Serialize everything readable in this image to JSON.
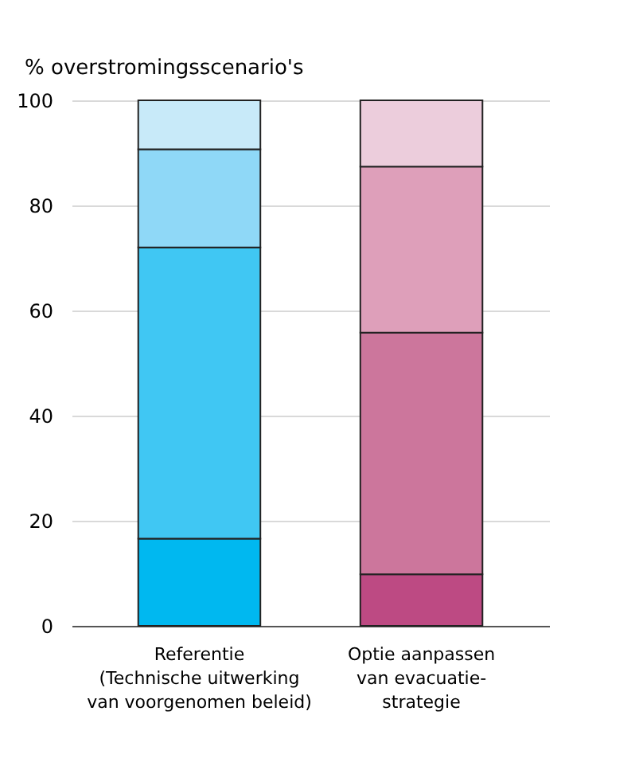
{
  "chart_data": {
    "type": "bar",
    "stacked": true,
    "ylabel": "% overstromingsscenario's",
    "categories": [
      "Referentie\n(Technische uitwerking\nvan voorgenomen beleid)",
      "Optie aanpassen\nvan evacuatie-\nstrategie"
    ],
    "series": [
      {
        "colors": [
          "#00b8f0",
          "#bd4a83"
        ],
        "values": [
          16.6,
          9.8
        ]
      },
      {
        "colors": [
          "#40c7f3",
          "#cc769c"
        ],
        "values": [
          55.4,
          46.0
        ]
      },
      {
        "colors": [
          "#8fd8f7",
          "#de9fba"
        ],
        "values": [
          18.7,
          31.6
        ]
      },
      {
        "colors": [
          "#c8eaf9",
          "#eccddc"
        ],
        "values": [
          9.3,
          12.6
        ]
      }
    ],
    "ylim": [
      0,
      100
    ],
    "yticks": [
      0,
      20,
      40,
      60,
      80,
      100
    ],
    "grid": "y"
  }
}
